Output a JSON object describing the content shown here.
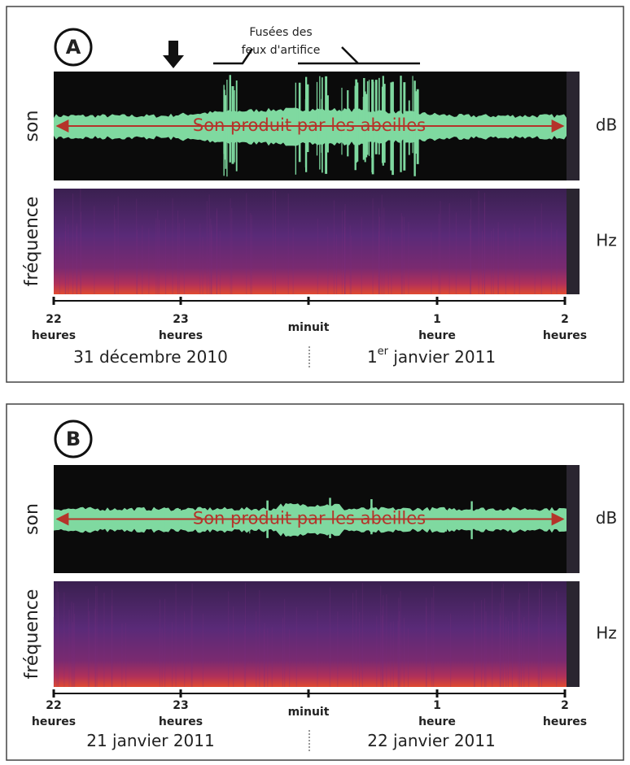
{
  "panels": [
    {
      "label": "A",
      "annotation": [
        "Fusées des",
        "feux d'artifice"
      ],
      "top_ylabel": "son",
      "top_unit": "dB",
      "bottom_ylabel": "fréquence",
      "bottom_unit": "Hz",
      "center_text": "Son produit par les abeilles",
      "ticks": [
        {
          "number": "22",
          "word": "heures"
        },
        {
          "number": "23",
          "word": "heures"
        },
        {
          "word": "minuit"
        },
        {
          "number": "1",
          "word": "heure"
        },
        {
          "number": "2",
          "word": "heures"
        }
      ],
      "date_left": [
        "31 décembre 2010"
      ],
      "date_right": [
        "1",
        "er",
        " janvier 2011"
      ]
    },
    {
      "label": "B",
      "top_ylabel": "son",
      "top_unit": "dB",
      "bottom_ylabel": "fréquence",
      "bottom_unit": "Hz",
      "center_text": "Son produit par les abeilles",
      "ticks": [
        {
          "number": "22",
          "word": "heures"
        },
        {
          "number": "23",
          "word": "heures"
        },
        {
          "word": "minuit"
        },
        {
          "number": "1",
          "word": "heure"
        },
        {
          "number": "2",
          "word": "heures"
        }
      ],
      "date_left": [
        "21 janvier 2011"
      ],
      "date_right": [
        "22 janvier 2011"
      ]
    }
  ]
}
